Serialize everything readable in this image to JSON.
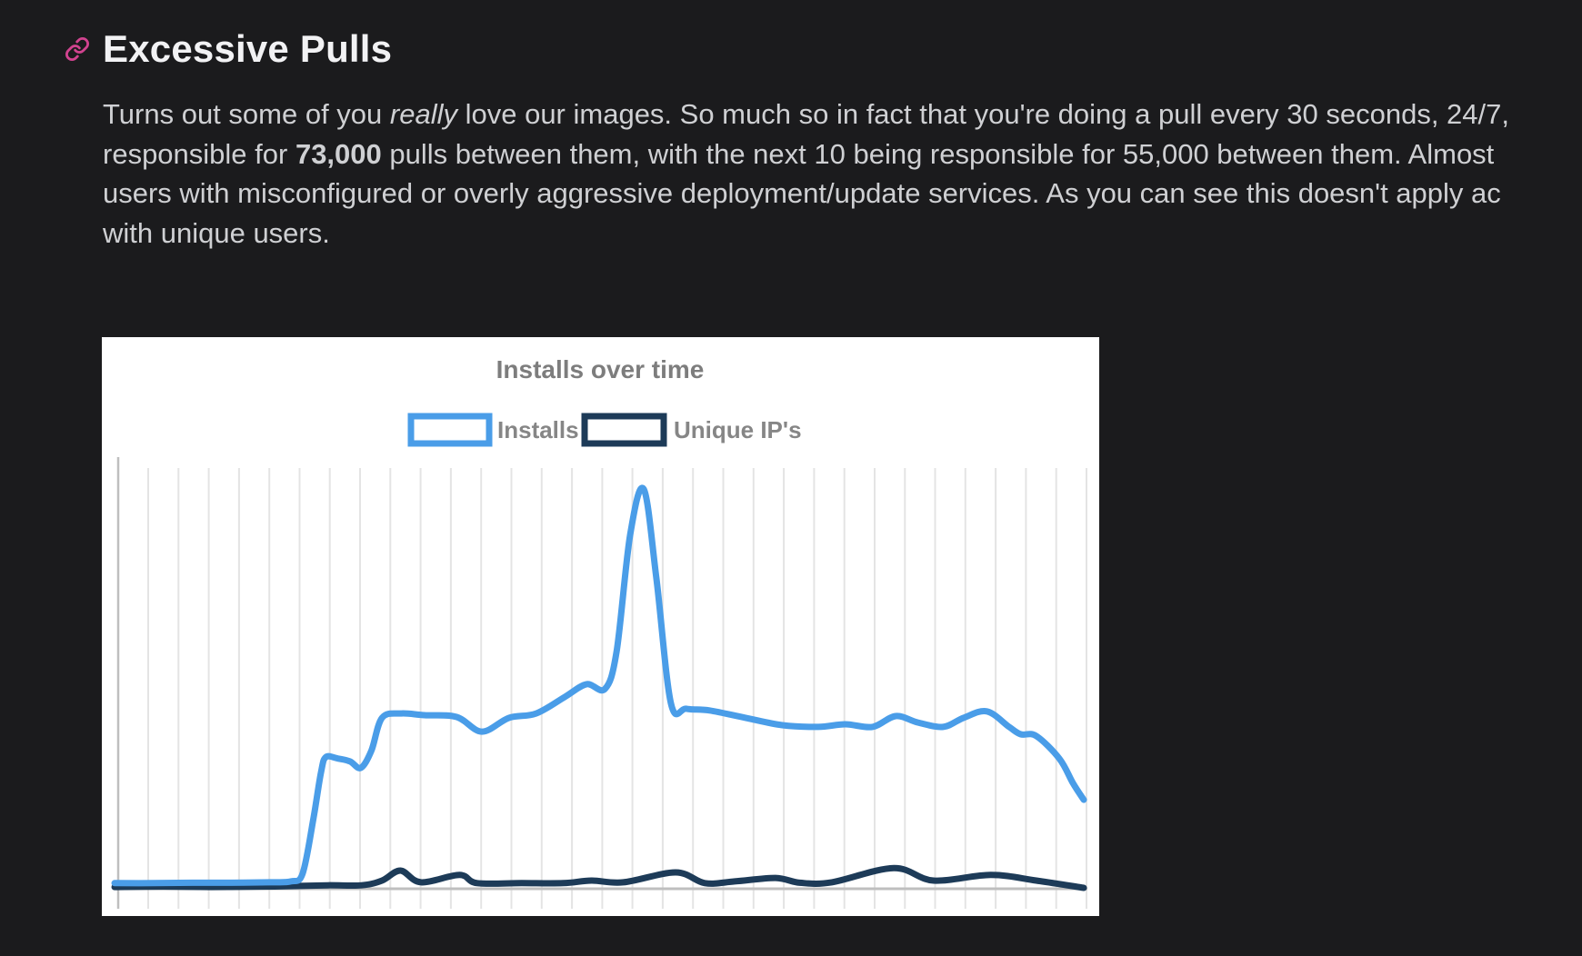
{
  "heading": {
    "text": "Excessive Pulls",
    "anchor_icon": "link-icon",
    "anchor_color": "#d1438f"
  },
  "paragraph": {
    "line1_pre": "Turns out some of you ",
    "line1_italic": "really",
    "line1_post": " love our images. So much so in fact that you're doing a pull every 30 seconds, 24/7,",
    "line2_pre": "responsible for ",
    "line2_bold": "73,000",
    "line2_post": " pulls between them, with the next 10 being responsible for 55,000 between them. Almost",
    "line3": "users with misconfigured or overly aggressive deployment/update services. As you can see this doesn't apply ac",
    "line4": "with unique users."
  },
  "colors": {
    "page_background": "#1b1b1d",
    "heading_text": "#f2f2f4",
    "body_text": "#cfd0d3",
    "anchor_icon": "#d1438f",
    "chart_background": "#ffffff",
    "chart_text": "#7d7d7d",
    "gridline": "#e4e4e4",
    "axis": "#bfbfbf",
    "installs_line": "#4a9de8",
    "unique_ips_line": "#1d3b58"
  },
  "chart_data": {
    "type": "line",
    "title": "Installs over time",
    "legend_position": "top",
    "grid": "vertical-only",
    "vertical_gridlines": 32,
    "x_tick_labels": [],
    "y_tick_labels": [],
    "x_unit": "percent_of_plot_width (no axis labels visible)",
    "y_unit": "percent_of_plot_height (no axis labels visible)",
    "series": [
      {
        "name": "Installs",
        "color": "#4a9de8",
        "points": [
          [
            0,
            1.3
          ],
          [
            4,
            1.3
          ],
          [
            8,
            1.4
          ],
          [
            12,
            1.4
          ],
          [
            16,
            1.5
          ],
          [
            18.2,
            1.7
          ],
          [
            19.4,
            3.5
          ],
          [
            20.5,
            16
          ],
          [
            21.3,
            27
          ],
          [
            21.8,
            30.5
          ],
          [
            23,
            30.2
          ],
          [
            24.3,
            29.5
          ],
          [
            25.4,
            28
          ],
          [
            26.5,
            32
          ],
          [
            27.6,
            39.6
          ],
          [
            29.6,
            40.6
          ],
          [
            32,
            40.2
          ],
          [
            35.3,
            39.8
          ],
          [
            37.9,
            36.4
          ],
          [
            40.7,
            39.6
          ],
          [
            43.5,
            40.6
          ],
          [
            46.5,
            44.5
          ],
          [
            48.7,
            47.4
          ],
          [
            50.6,
            46.3
          ],
          [
            51.8,
            55
          ],
          [
            53.2,
            82
          ],
          [
            54.6,
            92.6
          ],
          [
            55.9,
            72
          ],
          [
            57.4,
            43
          ],
          [
            59,
            41.7
          ],
          [
            61.4,
            41.3
          ],
          [
            65.1,
            39.6
          ],
          [
            68.9,
            37.9
          ],
          [
            72.6,
            37.5
          ],
          [
            75.4,
            38.1
          ],
          [
            78.2,
            37.5
          ],
          [
            80.6,
            40
          ],
          [
            82.9,
            38.5
          ],
          [
            85.5,
            37.5
          ],
          [
            87.6,
            39.6
          ],
          [
            90,
            41.1
          ],
          [
            92.3,
            37.5
          ],
          [
            93.5,
            35.8
          ],
          [
            95.1,
            35.4
          ],
          [
            97.5,
            30.1
          ],
          [
            98.9,
            24.4
          ],
          [
            100,
            20.6
          ]
        ]
      },
      {
        "name": "Unique IP's",
        "color": "#1d3b58",
        "points": [
          [
            0,
            0.4
          ],
          [
            5,
            0.5
          ],
          [
            10,
            0.4
          ],
          [
            15,
            0.5
          ],
          [
            18,
            0.6
          ],
          [
            22,
            0.8
          ],
          [
            25.5,
            0.8
          ],
          [
            27.6,
            1.9
          ],
          [
            29.5,
            4.2
          ],
          [
            31.6,
            1.5
          ],
          [
            35.6,
            3.2
          ],
          [
            37.4,
            1.3
          ],
          [
            42,
            1.3
          ],
          [
            46.3,
            1.3
          ],
          [
            49.2,
            1.9
          ],
          [
            52.5,
            1.5
          ],
          [
            57.9,
            3.8
          ],
          [
            60.9,
            1.3
          ],
          [
            64,
            1.7
          ],
          [
            68.2,
            2.5
          ],
          [
            70.7,
            1.4
          ],
          [
            74,
            1.5
          ],
          [
            80.4,
            4.8
          ],
          [
            84.5,
            1.9
          ],
          [
            90.4,
            3.2
          ],
          [
            95.1,
            1.9
          ],
          [
            100,
            0.2
          ]
        ]
      }
    ]
  }
}
